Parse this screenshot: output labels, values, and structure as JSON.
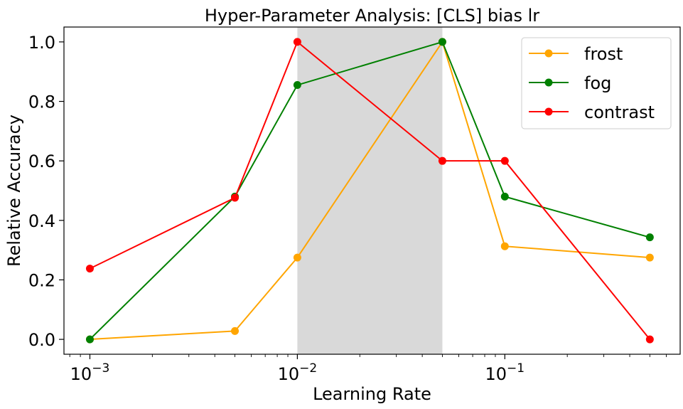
{
  "chart_data": {
    "type": "line",
    "title": "Hyper-Parameter Analysis: [CLS] bias lr",
    "xlabel": "Learning Rate",
    "ylabel": "Relative Accuracy",
    "x_scale": "log",
    "x_range": [
      0.00075,
      0.7
    ],
    "x": [
      0.001,
      0.005,
      0.01,
      0.05,
      0.1,
      0.5
    ],
    "xticks": [
      {
        "value": 0.001,
        "base": "10",
        "exp": "−3"
      },
      {
        "value": 0.01,
        "base": "10",
        "exp": "−2"
      },
      {
        "value": 0.1,
        "base": "10",
        "exp": "−1"
      }
    ],
    "ylim": [
      -0.05,
      1.05
    ],
    "yticks": [
      {
        "value": 0.0,
        "label": "0.0"
      },
      {
        "value": 0.2,
        "label": "0.2"
      },
      {
        "value": 0.4,
        "label": "0.4"
      },
      {
        "value": 0.6,
        "label": "0.6"
      },
      {
        "value": 0.8,
        "label": "0.8"
      },
      {
        "value": 1.0,
        "label": "1.0"
      }
    ],
    "shaded_region": {
      "x_from": 0.01,
      "x_to": 0.05,
      "color": "#d9d9d9"
    },
    "grid": false,
    "legend_position": "top-right",
    "series": [
      {
        "name": "frost",
        "color": "#ffa500",
        "values": [
          0.0,
          0.028,
          0.275,
          1.0,
          0.313,
          0.275
        ]
      },
      {
        "name": "fog",
        "color": "#008000",
        "values": [
          0.0,
          0.48,
          0.855,
          1.0,
          0.48,
          0.343
        ]
      },
      {
        "name": "contrast",
        "color": "#ff0000",
        "values": [
          0.238,
          0.476,
          1.0,
          0.6,
          0.6,
          0.0
        ]
      }
    ]
  }
}
